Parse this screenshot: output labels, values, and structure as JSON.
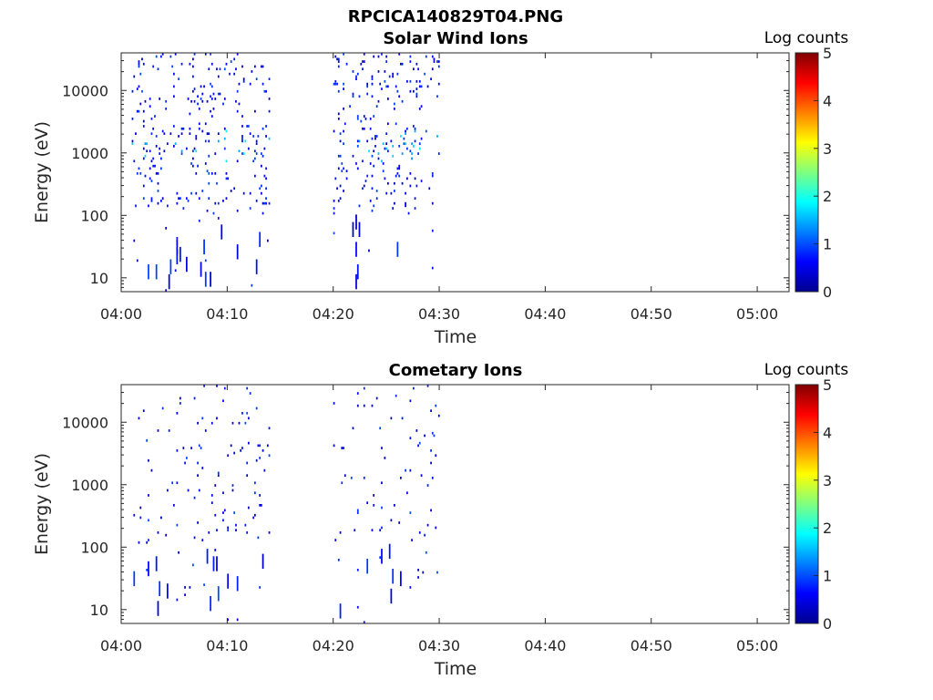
{
  "figure_title": "RPCICA140829T04.PNG",
  "colorbar": {
    "label": "Log counts",
    "ticks": [
      "0",
      "1",
      "2",
      "3",
      "4",
      "5"
    ],
    "colormap": "jet"
  },
  "chart_data": [
    {
      "type": "heatmap",
      "title": "Solar Wind Ions",
      "xlabel": "Time",
      "ylabel": "Energy (eV)",
      "yscale": "log",
      "ylim": [
        6,
        40000
      ],
      "xlim_minutes": [
        0,
        63
      ],
      "x_ticks": [
        "04:00",
        "04:10",
        "04:20",
        "04:30",
        "04:40",
        "04:50",
        "05:00"
      ],
      "y_ticks": [
        "10",
        "100",
        "1000",
        "10000"
      ],
      "data_intervals": [
        [
          "04:01",
          "04:14"
        ],
        [
          "04:20",
          "04:30"
        ]
      ],
      "clim": [
        0,
        5
      ],
      "dominant_energy_eV": 900,
      "max_log_counts": 1.8
    },
    {
      "type": "heatmap",
      "title": "Cometary Ions",
      "xlabel": "Time",
      "ylabel": "Energy (eV)",
      "yscale": "log",
      "ylim": [
        6,
        40000
      ],
      "xlim_minutes": [
        0,
        63
      ],
      "x_ticks": [
        "04:00",
        "04:10",
        "04:20",
        "04:30",
        "04:40",
        "04:50",
        "05:00"
      ],
      "y_ticks": [
        "10",
        "100",
        "1000",
        "10000"
      ],
      "data_intervals": [
        [
          "04:01",
          "04:14"
        ],
        [
          "04:20",
          "04:30"
        ]
      ],
      "clim": [
        0,
        5
      ],
      "max_log_counts": 0.5
    }
  ]
}
